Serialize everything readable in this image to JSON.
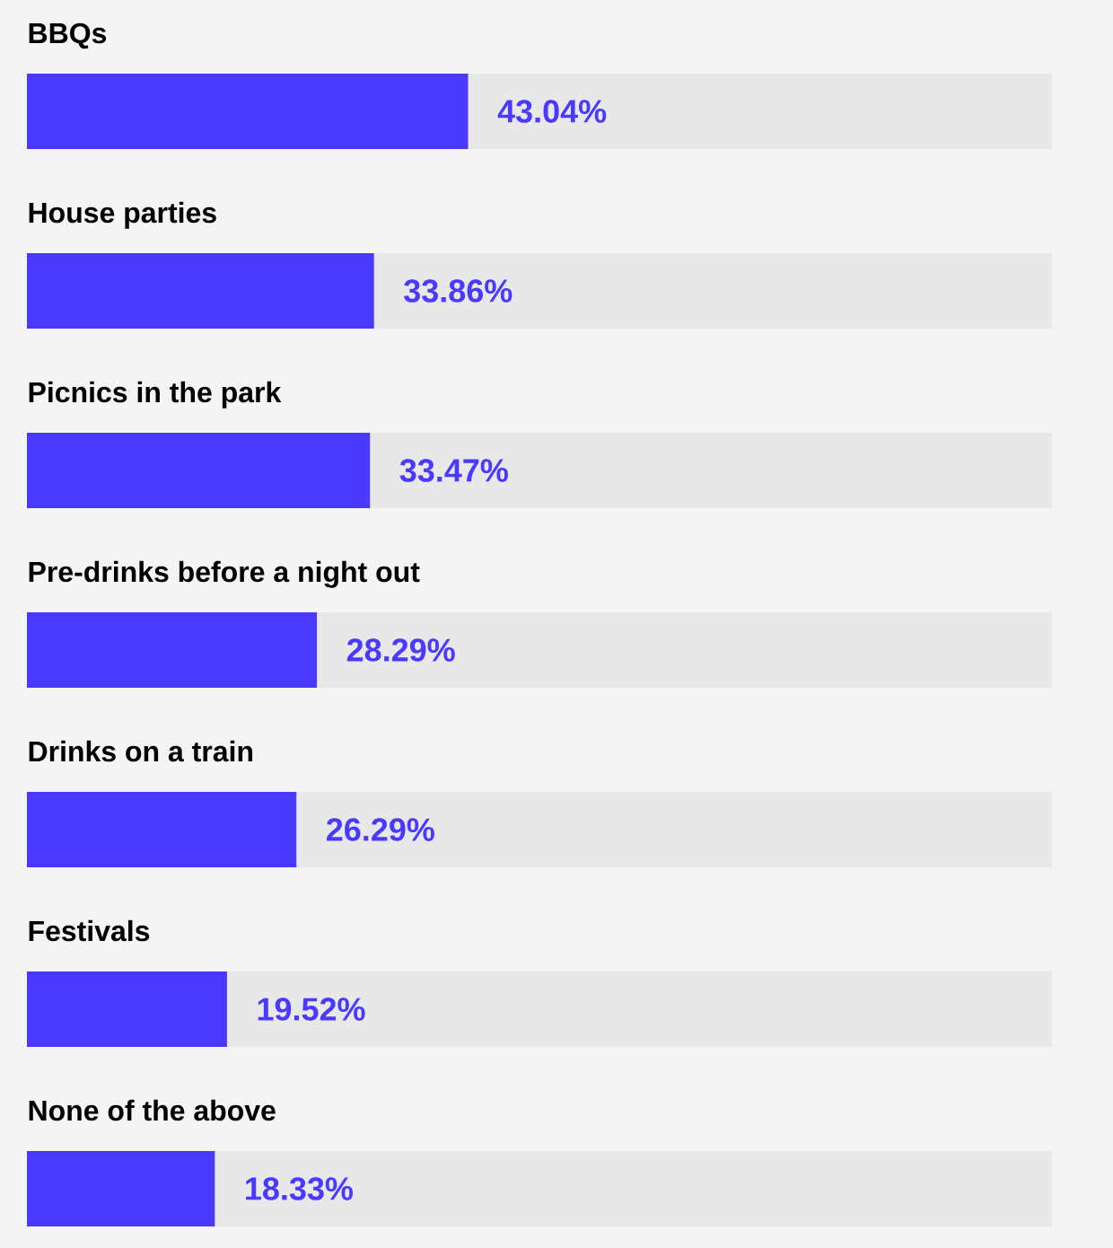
{
  "chart_data": {
    "type": "bar",
    "orientation": "horizontal",
    "categories": [
      "BBQs",
      "House parties",
      "Picnics in the park",
      "Pre-drinks before a night out",
      "Drinks on a train",
      "Festivals",
      "None of the above"
    ],
    "values": [
      43.04,
      33.86,
      33.47,
      28.29,
      26.29,
      19.52,
      18.33
    ],
    "value_labels": [
      "43.04%",
      "33.86%",
      "33.47%",
      "28.29%",
      "26.29%",
      "19.52%",
      "18.33%"
    ],
    "color": "#4a3aff",
    "xlim": [
      0,
      100
    ],
    "tick_labels": false
  }
}
